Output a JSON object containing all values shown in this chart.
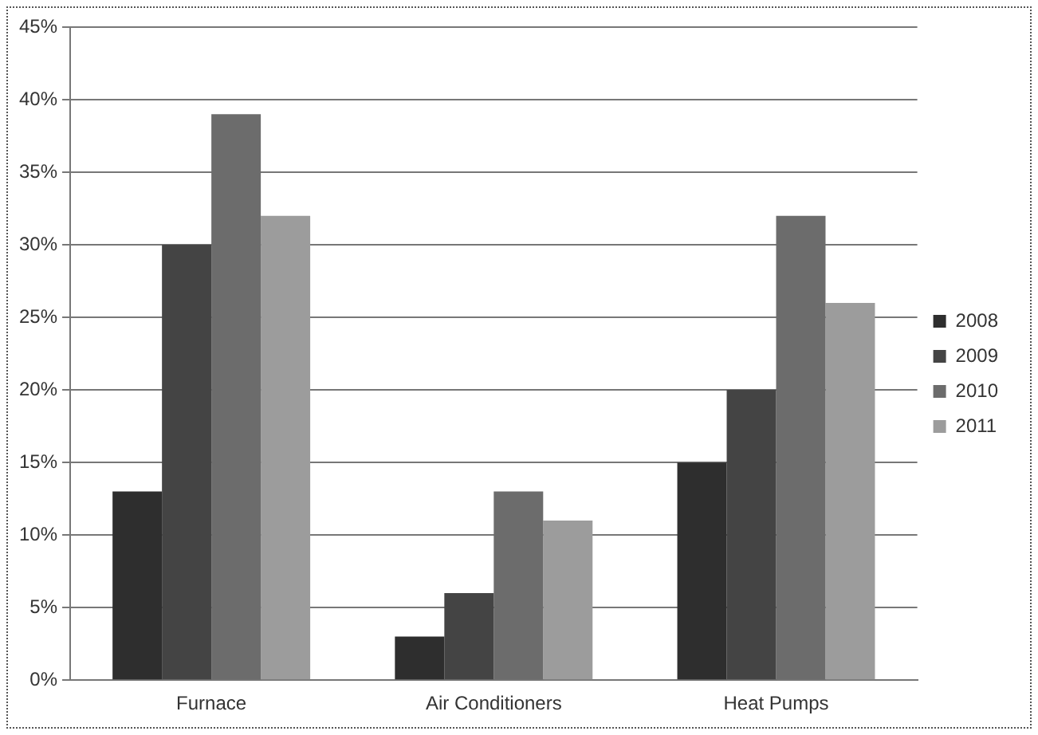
{
  "chart_data": {
    "type": "bar",
    "categories": [
      "Furnace",
      "Air Conditioners",
      "Heat Pumps"
    ],
    "series": [
      {
        "name": "2008",
        "color": "#2e2e2e",
        "values": [
          13,
          3,
          15
        ]
      },
      {
        "name": "2009",
        "color": "#444444",
        "values": [
          30,
          6,
          20
        ]
      },
      {
        "name": "2010",
        "color": "#6c6c6c",
        "values": [
          39,
          13,
          32
        ]
      },
      {
        "name": "2011",
        "color": "#9c9c9c",
        "values": [
          32,
          11,
          26
        ]
      }
    ],
    "ylim": [
      0,
      45
    ],
    "yticks": [
      {
        "value": 0,
        "label": "0%"
      },
      {
        "value": 5,
        "label": "5%"
      },
      {
        "value": 10,
        "label": "10%"
      },
      {
        "value": 15,
        "label": "15%"
      },
      {
        "value": 20,
        "label": "20%"
      },
      {
        "value": 25,
        "label": "25%"
      },
      {
        "value": 30,
        "label": "30%"
      },
      {
        "value": 35,
        "label": "35%"
      },
      {
        "value": 40,
        "label": "40%"
      },
      {
        "value": 45,
        "label": "45%"
      }
    ],
    "grid": "y",
    "legend": "right"
  }
}
